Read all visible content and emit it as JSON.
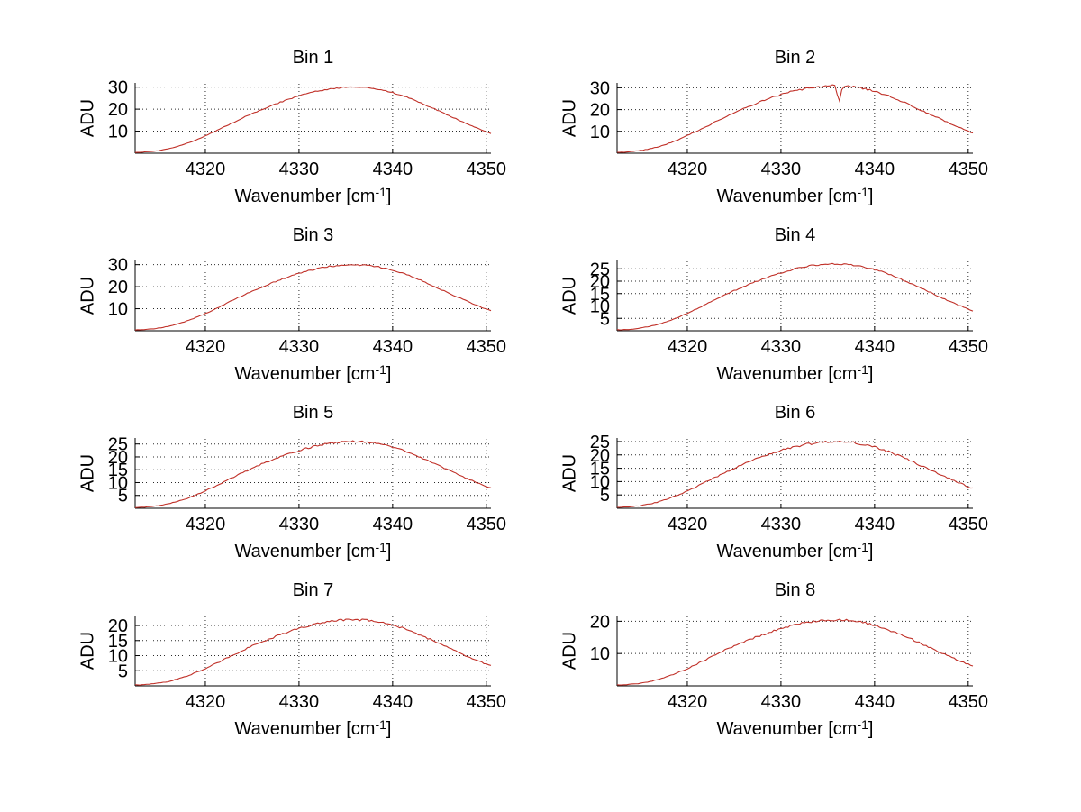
{
  "figure": {
    "background_color": "#ffffff",
    "layout": "4x2 subplot grid"
  },
  "chart_common": {
    "type": "line",
    "ylabel": "ADU",
    "xlabel_prefix": "Wavenumber [cm",
    "xlabel_superscript": "-1",
    "xlabel_suffix": "]",
    "x_ticks": [
      4320,
      4330,
      4340,
      4350
    ],
    "xlim": [
      4312.5,
      4350.5
    ],
    "grid": true,
    "grid_style": "dotted",
    "grid_color": "#2b2b2b",
    "axis_color": "#000000",
    "line_color": "#c03028",
    "wavenumber_x": [
      4313,
      4314,
      4315,
      4316,
      4317,
      4318,
      4319,
      4320,
      4321,
      4322,
      4323,
      4324,
      4325,
      4326,
      4327,
      4328,
      4329,
      4330,
      4331,
      4332,
      4333,
      4334,
      4335,
      4336,
      4337,
      4338,
      4339,
      4340,
      4341,
      4342,
      4343,
      4344,
      4345,
      4346,
      4347,
      4348,
      4349,
      4350,
      4351
    ]
  },
  "chart_data": [
    {
      "title": "Bin 1",
      "y_ticks": [
        10,
        20,
        30
      ],
      "ylim": [
        0,
        31.5
      ],
      "noise_amplitude": 0.3,
      "adu": [
        0.4,
        0.7,
        1.2,
        2.0,
        3.0,
        4.4,
        6.0,
        7.8,
        9.8,
        11.9,
        14.0,
        16.1,
        18.0,
        19.8,
        21.5,
        23.1,
        24.6,
        26.0,
        27.2,
        28.2,
        29.0,
        29.6,
        29.9,
        30.0,
        29.8,
        29.3,
        28.6,
        27.5,
        26.2,
        24.6,
        22.9,
        21.0,
        19.1,
        17.1,
        15.2,
        13.3,
        11.5,
        9.8,
        8.2
      ]
    },
    {
      "title": "Bin 2",
      "y_ticks": [
        10,
        20,
        30
      ],
      "ylim": [
        0,
        31.8
      ],
      "noise_amplitude": 0.45,
      "dip": {
        "x": 4336.2,
        "adu": 23.0,
        "width": 0.4
      },
      "adu": [
        0.4,
        0.7,
        1.2,
        2.0,
        3.1,
        4.5,
        6.2,
        8.1,
        10.1,
        12.2,
        14.4,
        16.6,
        18.6,
        20.5,
        22.2,
        23.9,
        25.4,
        26.8,
        28.1,
        29.1,
        29.9,
        30.5,
        30.9,
        31.0,
        30.8,
        30.3,
        29.5,
        28.4,
        27.0,
        25.4,
        23.6,
        21.7,
        19.7,
        17.7,
        15.7,
        13.7,
        11.8,
        10.1,
        8.4
      ]
    },
    {
      "title": "Bin 3",
      "y_ticks": [
        10,
        20,
        30
      ],
      "ylim": [
        0,
        31.5
      ],
      "noise_amplitude": 0.35,
      "adu": [
        0.4,
        0.7,
        1.2,
        2.0,
        3.0,
        4.4,
        6.0,
        7.8,
        9.8,
        11.9,
        14.0,
        16.1,
        18.0,
        19.8,
        21.5,
        23.1,
        24.6,
        26.0,
        27.2,
        28.2,
        29.0,
        29.5,
        29.9,
        30.0,
        29.8,
        29.3,
        28.6,
        27.5,
        26.2,
        24.6,
        22.9,
        21.0,
        19.1,
        17.1,
        15.2,
        13.3,
        11.5,
        9.8,
        8.2
      ]
    },
    {
      "title": "Bin 4",
      "y_ticks": [
        5,
        10,
        15,
        20,
        25
      ],
      "ylim": [
        0,
        28
      ],
      "noise_amplitude": 0.3,
      "adu": [
        0.4,
        0.6,
        1.1,
        1.8,
        2.7,
        3.9,
        5.4,
        7.0,
        8.8,
        10.7,
        12.6,
        14.4,
        16.2,
        17.8,
        19.3,
        20.8,
        22.1,
        23.4,
        24.4,
        25.4,
        26.1,
        26.6,
        26.9,
        27.0,
        26.8,
        26.4,
        25.7,
        24.7,
        23.5,
        22.1,
        20.6,
        18.9,
        17.2,
        15.4,
        13.6,
        11.9,
        10.3,
        8.8,
        7.3
      ]
    },
    {
      "title": "Bin 5",
      "y_ticks": [
        5,
        10,
        15,
        20,
        25
      ],
      "ylim": [
        0,
        27
      ],
      "noise_amplitude": 0.35,
      "adu": [
        0.3,
        0.6,
        1.0,
        1.7,
        2.6,
        3.8,
        5.2,
        6.8,
        8.5,
        10.3,
        12.1,
        13.9,
        15.6,
        17.2,
        18.6,
        20.0,
        21.3,
        22.5,
        23.5,
        24.4,
        25.1,
        25.6,
        25.9,
        26.0,
        25.8,
        25.4,
        24.8,
        23.8,
        22.7,
        21.3,
        19.8,
        18.2,
        16.5,
        14.8,
        13.1,
        11.5,
        9.9,
        8.5,
        7.1
      ]
    },
    {
      "title": "Bin 6",
      "y_ticks": [
        5,
        10,
        15,
        20,
        25
      ],
      "ylim": [
        0,
        26
      ],
      "noise_amplitude": 0.45,
      "adu": [
        0.3,
        0.6,
        1.0,
        1.6,
        2.5,
        3.6,
        5.0,
        6.5,
        8.1,
        9.9,
        11.6,
        13.4,
        15.0,
        16.5,
        17.9,
        19.3,
        20.5,
        21.6,
        22.6,
        23.5,
        24.1,
        24.6,
        24.9,
        25.0,
        24.8,
        24.5,
        23.8,
        22.9,
        21.8,
        20.5,
        19.1,
        17.5,
        15.9,
        14.3,
        12.6,
        11.1,
        9.6,
        8.1,
        6.8
      ]
    },
    {
      "title": "Bin 7",
      "y_ticks": [
        5,
        10,
        15,
        20
      ],
      "ylim": [
        0,
        23
      ],
      "noise_amplitude": 0.35,
      "adu": [
        0.3,
        0.5,
        0.9,
        1.4,
        2.2,
        3.2,
        4.4,
        5.7,
        7.2,
        8.7,
        10.2,
        11.8,
        13.2,
        14.5,
        15.7,
        16.9,
        18.0,
        19.0,
        19.9,
        20.7,
        21.2,
        21.7,
        21.9,
        22.0,
        21.8,
        21.5,
        20.9,
        20.2,
        19.2,
        18.0,
        16.8,
        15.4,
        14.0,
        12.5,
        11.1,
        9.7,
        8.4,
        7.2,
        6.0
      ]
    },
    {
      "title": "Bin 8",
      "y_ticks": [
        10,
        20
      ],
      "ylim": [
        0,
        21.5
      ],
      "noise_amplitude": 0.35,
      "adu": [
        0.3,
        0.5,
        0.8,
        1.3,
        2.1,
        3.0,
        4.1,
        5.3,
        6.7,
        8.1,
        9.5,
        11.0,
        12.3,
        13.5,
        14.7,
        15.8,
        16.8,
        17.7,
        18.6,
        19.3,
        19.8,
        20.2,
        20.4,
        20.5,
        20.4,
        20.0,
        19.5,
        18.8,
        17.9,
        16.8,
        15.6,
        14.4,
        13.0,
        11.7,
        10.4,
        9.1,
        7.8,
        6.7,
        5.6
      ]
    }
  ]
}
